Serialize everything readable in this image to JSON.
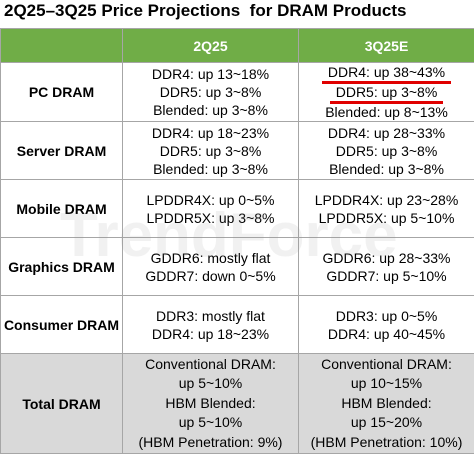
{
  "title": "2Q25–3Q25 Price Projections  for DRAM Products",
  "watermark": "TrendForce",
  "table": {
    "headers": [
      "2Q25",
      "3Q25E"
    ],
    "rows": [
      {
        "label": "PC DRAM",
        "cells": [
          [
            "DDR4: up 13~18%",
            "DDR5: up 3~8%",
            "Blended: up 3~8%"
          ],
          [
            "DDR4: up 38~43%",
            "DDR5: up 3~8%",
            "Blended: up 8~13%"
          ]
        ]
      },
      {
        "label": "Server DRAM",
        "cells": [
          [
            "DDR4: up 18~23%",
            "DDR5: up 3~8%",
            "Blended: up 3~8%"
          ],
          [
            "DDR4: up 28~33%",
            "DDR5: up 3~8%",
            "Blended: up 3~8%"
          ]
        ]
      },
      {
        "label": "Mobile DRAM",
        "cells": [
          [
            "LPDDR4X: up 0~5%",
            "LPDDR5X: up 3~8%"
          ],
          [
            "LPDDR4X: up 23~28%",
            "LPDDR5X: up 5~10%"
          ]
        ]
      },
      {
        "label": "Graphics DRAM",
        "cells": [
          [
            "GDDR6: mostly flat",
            "GDDR7: down 0~5%"
          ],
          [
            "GDDR6: up 28~33%",
            "GDDR7: up 5~10%"
          ]
        ]
      },
      {
        "label": "Consumer DRAM",
        "cells": [
          [
            "DDR3: mostly flat",
            "DDR4: up 18~23%"
          ],
          [
            "DDR3: up 0~5%",
            "DDR4: up 40~45%"
          ]
        ]
      },
      {
        "label": "Total DRAM",
        "cells": [
          [
            "Conventional DRAM:",
            "up 5~10%",
            "HBM Blended:",
            "up 5~10%",
            "(HBM Penetration: 9%)"
          ],
          [
            "Conventional DRAM:",
            "up 10~15%",
            "HBM Blended:",
            "up 15~20%",
            "(HBM Penetration: 10%)"
          ]
        ]
      }
    ]
  }
}
